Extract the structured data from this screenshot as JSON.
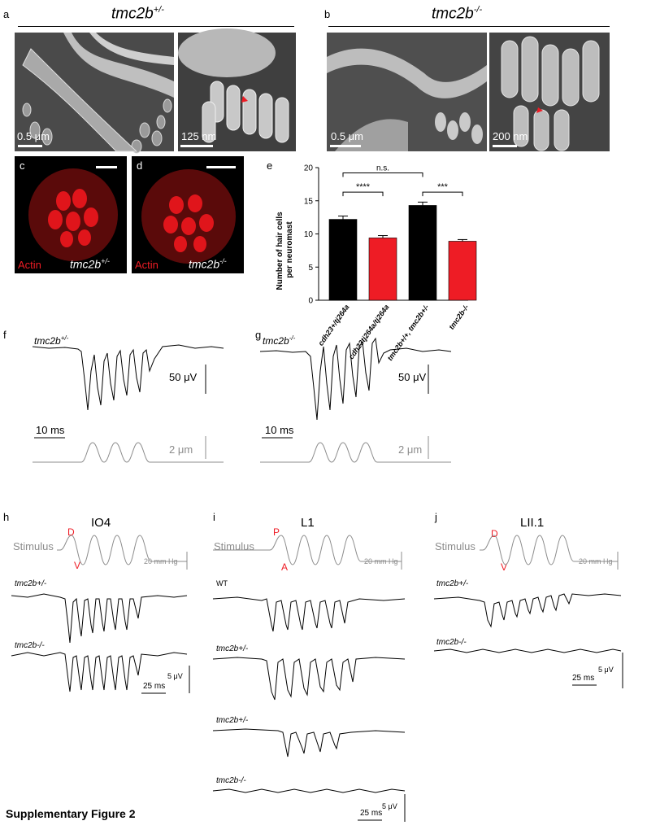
{
  "panels": {
    "a": {
      "letter": "a",
      "title": "tmc2b",
      "sup": "+/-",
      "scale_left": "0.5 μm",
      "scale_right": "125 nm"
    },
    "b": {
      "letter": "b",
      "title": "tmc2b",
      "sup": "-/-",
      "scale_left": "0.5 μm",
      "scale_right": "200 nm"
    },
    "c": {
      "letter": "c",
      "stain": "Actin",
      "genotype": "tmc2b",
      "sup": "+/-"
    },
    "d": {
      "letter": "d",
      "stain": "Actin",
      "genotype": "tmc2b",
      "sup": "-/-"
    },
    "e": {
      "letter": "e"
    },
    "f": {
      "letter": "f",
      "genotype": "tmc2b",
      "sup": "+/-",
      "volt_scale": "50 μV",
      "time_scale": "10 ms",
      "disp_scale": "2 μm"
    },
    "g": {
      "letter": "g",
      "genotype": "tmc2b",
      "sup": "-/-",
      "volt_scale": "50 μV",
      "time_scale": "10 ms",
      "disp_scale": "2 μm"
    },
    "h": {
      "letter": "h",
      "title": "IO4",
      "stim_label": "Stimulus",
      "dir1": "D",
      "dir2": "V",
      "pressure": "20 mm Hg",
      "trace1": "tmc2b+/-",
      "trace2": "tmc2b-/-",
      "volt": "5 μV",
      "time": "25 ms"
    },
    "i": {
      "letter": "i",
      "title": "L1",
      "stim_label": "Stimulus",
      "dir1": "P",
      "dir2": "A",
      "pressure": "20 mm Hg",
      "trace1": "WT",
      "trace2": "tmc2b+/-",
      "trace3": "tmc2b+/-",
      "trace4": "tmc2b-/-",
      "volt": "5 μV",
      "time": "25 ms"
    },
    "j": {
      "letter": "j",
      "title": "LII.1",
      "stim_label": "Stimulus",
      "dir1": "D",
      "dir2": "V",
      "pressure": "20 mm Hg",
      "trace1": "tmc2b+/-",
      "trace2": "tmc2b-/-",
      "volt": "5 μV",
      "time": "25 ms"
    }
  },
  "chart_data": {
    "type": "bar",
    "ylabel": "Number of hair cells per neuromast",
    "ylim": [
      0,
      20
    ],
    "yticks": [
      0,
      5,
      10,
      15,
      20
    ],
    "categories": [
      "cdh23+/tj264a",
      "cdh23tj264a/tj264a",
      "tmc2b+/+, tmc2b+/-",
      "tmc2b-/-"
    ],
    "values": [
      12.2,
      9.4,
      14.3,
      8.9
    ],
    "errors": [
      0.5,
      0.35,
      0.5,
      0.25
    ],
    "colors": [
      "#000000",
      "#ee1c25",
      "#000000",
      "#ee1c25"
    ],
    "significance": [
      {
        "from": 0,
        "to": 1,
        "label": "****"
      },
      {
        "from": 2,
        "to": 3,
        "label": "***"
      },
      {
        "from": 0,
        "to": 2,
        "label": "n.s."
      }
    ]
  },
  "caption": "Supplementary Figure 2",
  "colors": {
    "red": "#ee1c25",
    "gray": "#8c8c8c"
  }
}
